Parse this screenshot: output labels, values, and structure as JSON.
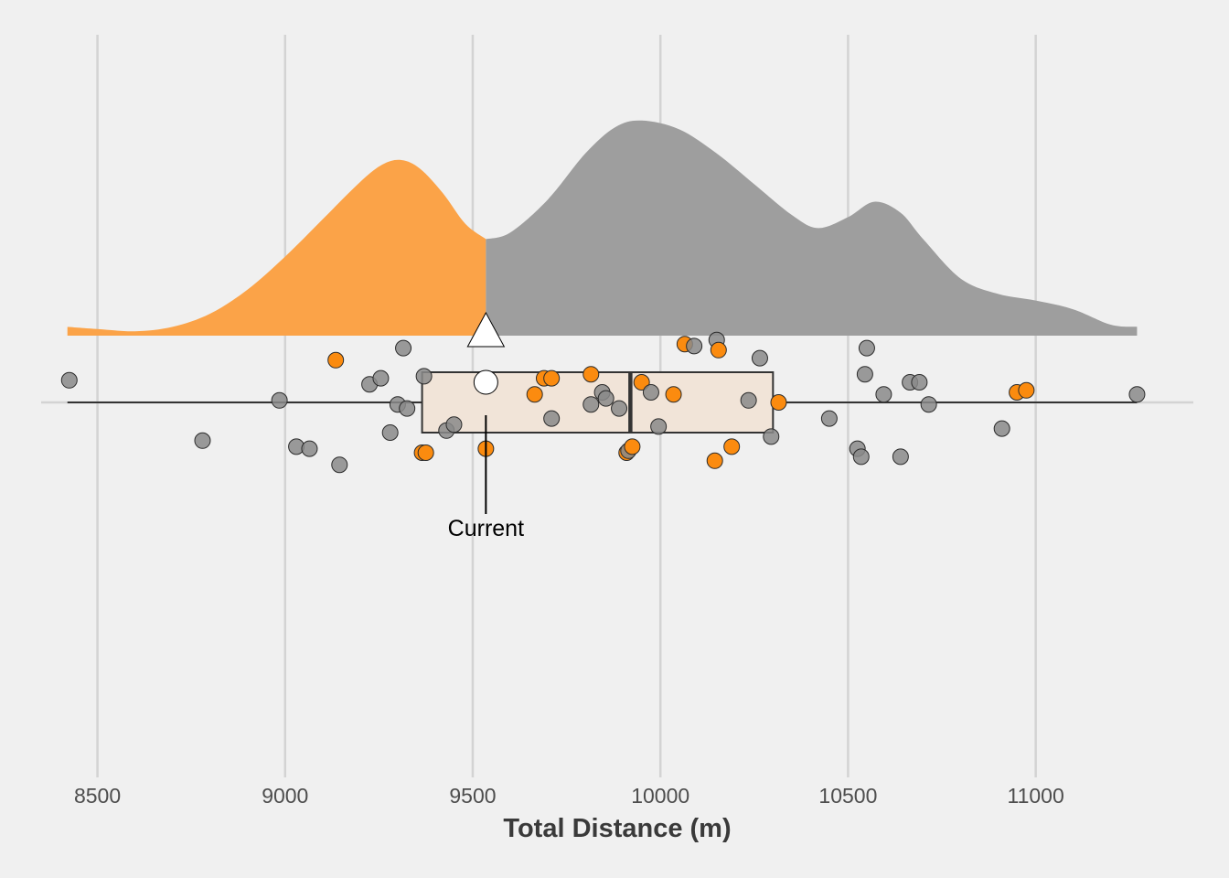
{
  "chart_data": {
    "type": "raincloud",
    "title": "",
    "xlabel": "Total Distance (m)",
    "ylabel": "",
    "xlim": [
      8350,
      11420
    ],
    "xticks": [
      8500,
      9000,
      9500,
      10000,
      10500,
      11000
    ],
    "tick_labels": [
      "8500",
      "9000",
      "9500",
      "10000",
      "10500",
      "11000"
    ],
    "grid": "vertical major lines",
    "colors": {
      "background": "#f0f0f0",
      "grid": "#d3d3d3",
      "highlight": "#fb8b0f",
      "highlight_density": "#fba348",
      "density": "#9e9e9e",
      "point": "#8a8a8a",
      "box_fill": "#f1e4d8",
      "outline": "#333333"
    },
    "current": {
      "label": "Current",
      "value": 9535
    },
    "density": {
      "x_min": 8420,
      "x_max": 11270,
      "split_at": 9535,
      "curve": [
        [
          8420,
          0.04
        ],
        [
          8500,
          0.03
        ],
        [
          8600,
          0.02
        ],
        [
          8700,
          0.04
        ],
        [
          8800,
          0.1
        ],
        [
          8900,
          0.21
        ],
        [
          9000,
          0.36
        ],
        [
          9100,
          0.53
        ],
        [
          9200,
          0.7
        ],
        [
          9260,
          0.78
        ],
        [
          9310,
          0.8
        ],
        [
          9360,
          0.76
        ],
        [
          9420,
          0.65
        ],
        [
          9480,
          0.51
        ],
        [
          9535,
          0.44
        ],
        [
          9600,
          0.47
        ],
        [
          9700,
          0.62
        ],
        [
          9800,
          0.83
        ],
        [
          9880,
          0.95
        ],
        [
          9950,
          0.98
        ],
        [
          10050,
          0.94
        ],
        [
          10150,
          0.83
        ],
        [
          10250,
          0.69
        ],
        [
          10350,
          0.55
        ],
        [
          10420,
          0.49
        ],
        [
          10500,
          0.54
        ],
        [
          10570,
          0.61
        ],
        [
          10640,
          0.56
        ],
        [
          10700,
          0.44
        ],
        [
          10800,
          0.26
        ],
        [
          10900,
          0.19
        ],
        [
          11000,
          0.16
        ],
        [
          11100,
          0.12
        ],
        [
          11200,
          0.05
        ],
        [
          11270,
          0.04
        ]
      ]
    },
    "boxplot": {
      "q1": 9365,
      "median": 9920,
      "q3": 10300,
      "whisker_low": 8420,
      "whisker_high": 11270
    },
    "points": [
      {
        "x": 8425,
        "y": 0.55,
        "highlight": false
      },
      {
        "x": 8780,
        "y": -0.95,
        "highlight": false
      },
      {
        "x": 8985,
        "y": 0.05,
        "highlight": false
      },
      {
        "x": 9030,
        "y": -1.1,
        "highlight": false
      },
      {
        "x": 9065,
        "y": -1.15,
        "highlight": false
      },
      {
        "x": 9135,
        "y": 1.05,
        "highlight": true
      },
      {
        "x": 9145,
        "y": -1.55,
        "highlight": false
      },
      {
        "x": 9225,
        "y": 0.45,
        "highlight": false
      },
      {
        "x": 9255,
        "y": 0.6,
        "highlight": false
      },
      {
        "x": 9280,
        "y": -0.75,
        "highlight": false
      },
      {
        "x": 9300,
        "y": -0.05,
        "highlight": false
      },
      {
        "x": 9315,
        "y": 1.35,
        "highlight": false
      },
      {
        "x": 9325,
        "y": -0.15,
        "highlight": false
      },
      {
        "x": 9365,
        "y": -1.25,
        "highlight": true
      },
      {
        "x": 9370,
        "y": 0.65,
        "highlight": false
      },
      {
        "x": 9375,
        "y": -1.25,
        "highlight": true
      },
      {
        "x": 9430,
        "y": -0.7,
        "highlight": false
      },
      {
        "x": 9450,
        "y": -0.55,
        "highlight": false
      },
      {
        "x": 9535,
        "y": -1.15,
        "highlight": true
      },
      {
        "x": 9665,
        "y": 0.2,
        "highlight": true
      },
      {
        "x": 9690,
        "y": 0.6,
        "highlight": true
      },
      {
        "x": 9710,
        "y": 0.6,
        "highlight": true
      },
      {
        "x": 9710,
        "y": -0.4,
        "highlight": false
      },
      {
        "x": 9815,
        "y": 0.7,
        "highlight": true
      },
      {
        "x": 9815,
        "y": -0.05,
        "highlight": false
      },
      {
        "x": 9845,
        "y": 0.25,
        "highlight": false
      },
      {
        "x": 9855,
        "y": 0.1,
        "highlight": false
      },
      {
        "x": 9890,
        "y": -0.15,
        "highlight": false
      },
      {
        "x": 9910,
        "y": -1.25,
        "highlight": true
      },
      {
        "x": 9915,
        "y": -1.2,
        "highlight": false
      },
      {
        "x": 9925,
        "y": -1.1,
        "highlight": true
      },
      {
        "x": 9950,
        "y": 0.5,
        "highlight": true
      },
      {
        "x": 9975,
        "y": 0.25,
        "highlight": false
      },
      {
        "x": 9995,
        "y": -0.6,
        "highlight": false
      },
      {
        "x": 10035,
        "y": 0.2,
        "highlight": true
      },
      {
        "x": 10065,
        "y": 1.45,
        "highlight": true
      },
      {
        "x": 10090,
        "y": 1.4,
        "highlight": false
      },
      {
        "x": 10145,
        "y": -1.45,
        "highlight": true
      },
      {
        "x": 10150,
        "y": 1.55,
        "highlight": false
      },
      {
        "x": 10155,
        "y": 1.3,
        "highlight": true
      },
      {
        "x": 10190,
        "y": -1.1,
        "highlight": true
      },
      {
        "x": 10235,
        "y": 0.05,
        "highlight": false
      },
      {
        "x": 10265,
        "y": 1.1,
        "highlight": false
      },
      {
        "x": 10295,
        "y": -0.85,
        "highlight": false
      },
      {
        "x": 10315,
        "y": 0.0,
        "highlight": true
      },
      {
        "x": 10450,
        "y": -0.4,
        "highlight": false
      },
      {
        "x": 10525,
        "y": -1.15,
        "highlight": false
      },
      {
        "x": 10535,
        "y": -1.35,
        "highlight": false
      },
      {
        "x": 10545,
        "y": 0.7,
        "highlight": false
      },
      {
        "x": 10550,
        "y": 1.35,
        "highlight": false
      },
      {
        "x": 10595,
        "y": 0.2,
        "highlight": false
      },
      {
        "x": 10640,
        "y": -1.35,
        "highlight": false
      },
      {
        "x": 10665,
        "y": 0.5,
        "highlight": false
      },
      {
        "x": 10690,
        "y": 0.5,
        "highlight": false
      },
      {
        "x": 10715,
        "y": -0.05,
        "highlight": false
      },
      {
        "x": 10910,
        "y": -0.65,
        "highlight": false
      },
      {
        "x": 10950,
        "y": 0.25,
        "highlight": true
      },
      {
        "x": 10975,
        "y": 0.3,
        "highlight": true
      },
      {
        "x": 11270,
        "y": 0.2,
        "highlight": false
      }
    ]
  }
}
